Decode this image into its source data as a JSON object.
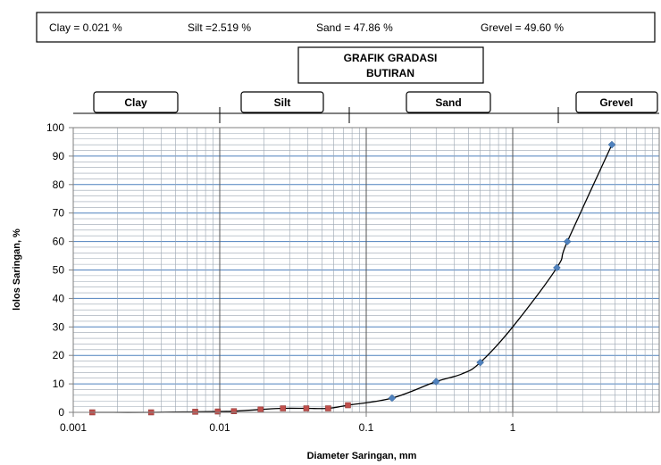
{
  "header": {
    "clay": "Clay = 0.021 %",
    "silt": "Silt =2.519 %",
    "sand": "Sand = 47.86 %",
    "grevel": "Grevel = 49.60 %"
  },
  "title_lines": [
    "GRAFIK GRADASI",
    "BUTIRAN"
  ],
  "zones": [
    {
      "label": "Clay",
      "from": 0.001,
      "to": 0.01
    },
    {
      "label": "Silt",
      "from": 0.01,
      "to": 0.075
    },
    {
      "label": "Sand",
      "from": 0.075,
      "to": 2.0
    },
    {
      "label": "Grevel",
      "from": 2.0,
      "to": 7.5
    }
  ],
  "chart_data": {
    "type": "scatter",
    "xlabel": "Diameter Saringan, mm",
    "ylabel": "lolos Saringan, %",
    "x_scale": "log",
    "xlim": [
      0.001,
      7.5
    ],
    "ylim": [
      0,
      100
    ],
    "x_ticks": [
      0.001,
      0.01,
      0.1,
      1
    ],
    "x_tick_labels": [
      "0.001",
      "0.01",
      "0.1",
      "1"
    ],
    "y_ticks": [
      0,
      10,
      20,
      30,
      40,
      50,
      60,
      70,
      80,
      90,
      100
    ],
    "y_tick_labels": [
      "0",
      "10",
      "20",
      "30",
      "40",
      "50",
      "60",
      "70",
      "80",
      "90",
      "100"
    ],
    "grid": true,
    "series": [
      {
        "color": "#c0504d",
        "marker": "square",
        "x": [
          0.00135,
          0.0034,
          0.0068,
          0.0097,
          0.0125,
          0.019,
          0.027,
          0.039,
          0.055,
          0.075
        ],
        "y": [
          0,
          0,
          0.2,
          0.3,
          0.4,
          1.0,
          1.4,
          1.4,
          1.4,
          2.5
        ]
      },
      {
        "color": "#4f81bd",
        "marker": "diamond",
        "x": [
          0.15,
          0.3,
          0.6,
          2.0,
          2.36,
          4.75
        ],
        "y": [
          5.0,
          10.8,
          17.5,
          50.8,
          60.0,
          94.0
        ]
      }
    ],
    "curve": {
      "color": "#000000",
      "x": [
        0.00135,
        0.0034,
        0.0068,
        0.0097,
        0.0125,
        0.019,
        0.027,
        0.039,
        0.055,
        0.075,
        0.15,
        0.3,
        0.45,
        0.6,
        1.0,
        2.0,
        2.36,
        4.75
      ],
      "y": [
        0,
        0,
        0.2,
        0.3,
        0.4,
        1.0,
        1.4,
        1.4,
        1.4,
        2.5,
        5.0,
        10.8,
        13.5,
        17.5,
        30.0,
        50.8,
        60.0,
        94.0
      ]
    }
  },
  "colors": {
    "gridline": "#4f81bd",
    "minor_gridline": "#9aa5b1"
  }
}
